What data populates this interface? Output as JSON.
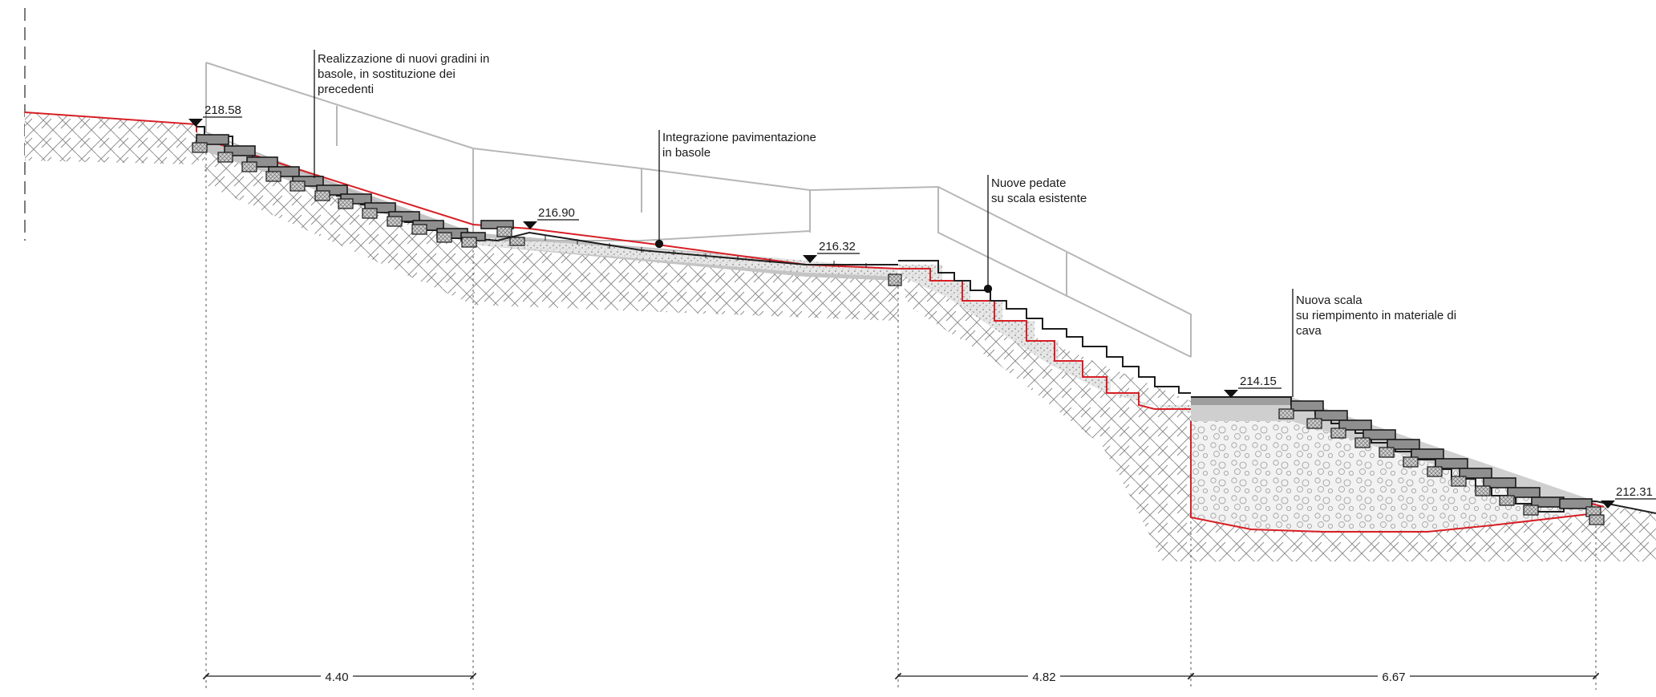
{
  "drawing": {
    "annotations": [
      {
        "id": "gradini",
        "lines": [
          "Realizzazione di nuovi gradini in",
          "basole, in sostituzione dei",
          "precedenti"
        ]
      },
      {
        "id": "pavimentazione",
        "lines": [
          "Integrazione pavimentazione",
          "in basole"
        ]
      },
      {
        "id": "pedate",
        "lines": [
          "Nuove pedate",
          "su scala esistente"
        ]
      },
      {
        "id": "scala",
        "lines": [
          "Nuova scala",
          "su riempimento in materiale di",
          "cava"
        ]
      }
    ],
    "elevations": [
      "218.58",
      "216.90",
      "216.32",
      "214.15",
      "212.31"
    ],
    "dimensions": [
      "4.40",
      "4.82",
      "6.67"
    ],
    "colors": {
      "new_work": "#d81f26",
      "railing": "#b7b7b7",
      "concrete": "#c4c4c4",
      "block": "#8f8f8f",
      "line": "#1e1e1e"
    }
  }
}
